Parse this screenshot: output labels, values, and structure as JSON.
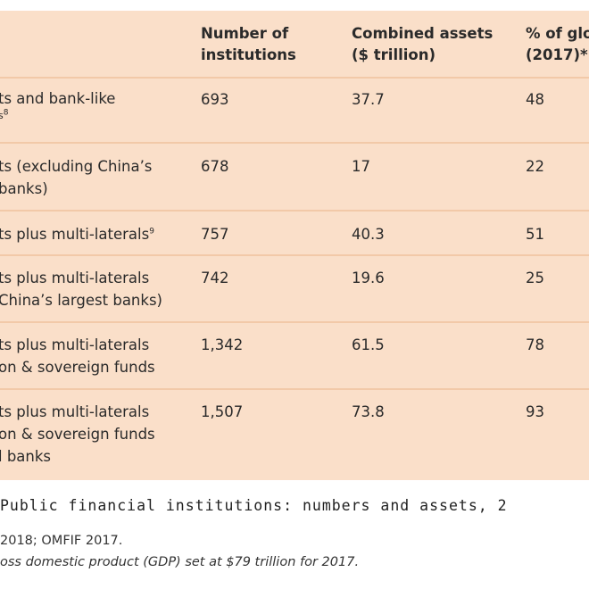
{
  "table": {
    "headers": [
      {
        "line1": "",
        "line2": ""
      },
      {
        "line1": "Number of",
        "line2": "institutions"
      },
      {
        "line1": "Combined assets",
        "line2": "($ trillion)"
      },
      {
        "line1": "% of glo",
        "line2": "(2017)*"
      }
    ],
    "rows": [
      {
        "label": [
          "ts and bank-like",
          "s"
        ],
        "label_sup": "8",
        "count": "693",
        "assets": "37.7",
        "pct": "48"
      },
      {
        "label": [
          "ts (excluding China’s",
          "banks)"
        ],
        "count": "678",
        "assets": "17",
        "pct": "22"
      },
      {
        "label": [
          "ts plus multi-laterals"
        ],
        "label_sup": "9",
        "count": "757",
        "assets": "40.3",
        "pct": "51"
      },
      {
        "label": [
          "ts plus multi-laterals",
          "China’s largest banks)"
        ],
        "count": "742",
        "assets": "19.6",
        "pct": "25"
      },
      {
        "label": [
          "ts plus multi-laterals",
          "on & sovereign funds"
        ],
        "count": "1,342",
        "assets": "61.5",
        "pct": "78"
      },
      {
        "label": [
          "ts plus multi-laterals",
          "on & sovereign funds",
          "l banks"
        ],
        "count": "1,507",
        "assets": "73.8",
        "pct": "93"
      }
    ]
  },
  "caption": "Public financial institutions: numbers and assets, 2",
  "source": " 2018; OMFIF 2017.",
  "note": "oss domestic product (GDP) set at $79 trillion for 2017."
}
